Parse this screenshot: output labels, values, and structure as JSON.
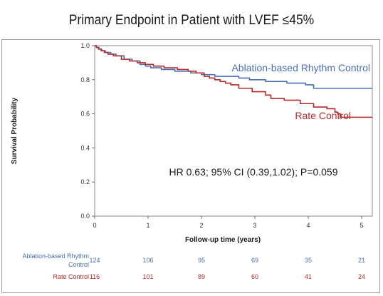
{
  "title": "Primary Endpoint in Patient with LVEF ≤45%",
  "chart_data": {
    "type": "line",
    "subtype": "kaplan-meier step",
    "title": "Primary Endpoint in Patient with LVEF ≤45%",
    "xlabel": "Follow-up time (years)",
    "ylabel": "Survival Probability",
    "xlim": [
      0,
      5.2
    ],
    "ylim": [
      0,
      1.0
    ],
    "x_ticks": [
      "0",
      "1",
      "2",
      "3",
      "4",
      "5"
    ],
    "y_ticks": [
      "0.0",
      "0.2",
      "0.4",
      "0.6",
      "0.8",
      "1.0"
    ],
    "grid": false,
    "annotation": "HR 0.63; 95% CI (0.39,1.02); P=0.059",
    "series": [
      {
        "name": "Ablation-based Rhythm Control",
        "color": "#4a6fb5",
        "label_position": "upper-right",
        "steps": [
          [
            0,
            1.0
          ],
          [
            0.03,
            0.99
          ],
          [
            0.08,
            0.98
          ],
          [
            0.13,
            0.97
          ],
          [
            0.2,
            0.96
          ],
          [
            0.3,
            0.95
          ],
          [
            0.4,
            0.94
          ],
          [
            0.55,
            0.92
          ],
          [
            0.7,
            0.91
          ],
          [
            0.85,
            0.89
          ],
          [
            0.95,
            0.88
          ],
          [
            1.05,
            0.87
          ],
          [
            1.25,
            0.86
          ],
          [
            1.5,
            0.85
          ],
          [
            1.8,
            0.84
          ],
          [
            2.0,
            0.83
          ],
          [
            2.25,
            0.82
          ],
          [
            2.7,
            0.81
          ],
          [
            2.9,
            0.8
          ],
          [
            3.2,
            0.79
          ],
          [
            3.6,
            0.78
          ],
          [
            3.95,
            0.77
          ],
          [
            4.1,
            0.75
          ],
          [
            5.2,
            0.75
          ]
        ],
        "at_risk": [
          124,
          106,
          95,
          69,
          35,
          21
        ]
      },
      {
        "name": "Rate Control",
        "color": "#b52a2a",
        "label_position": "right",
        "steps": [
          [
            0,
            1.0
          ],
          [
            0.03,
            0.99
          ],
          [
            0.07,
            0.98
          ],
          [
            0.12,
            0.97
          ],
          [
            0.18,
            0.96
          ],
          [
            0.25,
            0.95
          ],
          [
            0.35,
            0.94
          ],
          [
            0.5,
            0.92
          ],
          [
            0.65,
            0.91
          ],
          [
            0.8,
            0.9
          ],
          [
            0.95,
            0.89
          ],
          [
            1.1,
            0.88
          ],
          [
            1.3,
            0.87
          ],
          [
            1.55,
            0.86
          ],
          [
            1.75,
            0.85
          ],
          [
            1.9,
            0.84
          ],
          [
            2.05,
            0.82
          ],
          [
            2.15,
            0.81
          ],
          [
            2.25,
            0.8
          ],
          [
            2.35,
            0.79
          ],
          [
            2.45,
            0.78
          ],
          [
            2.55,
            0.77
          ],
          [
            2.7,
            0.75
          ],
          [
            2.95,
            0.73
          ],
          [
            3.2,
            0.71
          ],
          [
            3.3,
            0.69
          ],
          [
            3.5,
            0.69
          ],
          [
            3.55,
            0.68
          ],
          [
            3.8,
            0.68
          ],
          [
            3.85,
            0.66
          ],
          [
            4.05,
            0.66
          ],
          [
            4.1,
            0.64
          ],
          [
            4.3,
            0.64
          ],
          [
            4.35,
            0.63
          ],
          [
            4.45,
            0.63
          ],
          [
            4.5,
            0.61
          ],
          [
            4.55,
            0.6
          ],
          [
            4.6,
            0.58
          ],
          [
            5.2,
            0.58
          ]
        ],
        "at_risk": [
          116,
          101,
          89,
          60,
          41,
          24
        ]
      }
    ],
    "risk_table": {
      "rows": [
        {
          "label": "Ablation-based Rhythm\nControl",
          "color": "#4a6fb5"
        },
        {
          "label": "Rate Control",
          "color": "#b52a2a"
        }
      ]
    }
  }
}
